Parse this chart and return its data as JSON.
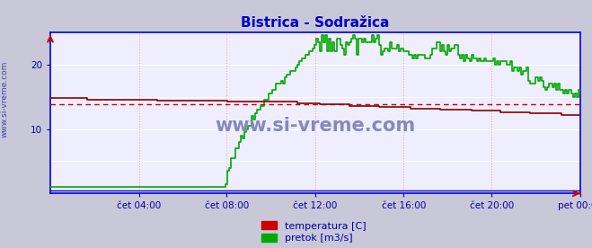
{
  "title": "Bistrica - Sodražica",
  "title_color": "#0000cc",
  "fig_bg_color": "#c8c8d8",
  "plot_bg_color": "#eeeeff",
  "grid_color_h": "#ffffff",
  "grid_color_v": "#ffaaaa",
  "border_color": "#0000dd",
  "tick_color": "#0000aa",
  "watermark": "www.si-vreme.com",
  "watermark_color": "#8888bb",
  "xtick_labels": [
    "čet 04:00",
    "čet 08:00",
    "čet 12:00",
    "čet 16:00",
    "čet 20:00",
    "pet 00:00"
  ],
  "xtick_positions": [
    0.167,
    0.333,
    0.5,
    0.667,
    0.833,
    1.0
  ],
  "ylim": [
    0,
    25
  ],
  "ytick_vals": [
    10,
    20
  ],
  "ytick_labels": [
    "10",
    "20"
  ],
  "legend_labels": [
    "temperatura [C]",
    "pretok [m3/s]"
  ],
  "legend_colors": [
    "#cc0000",
    "#00aa00"
  ],
  "temp_solid_color": "#880000",
  "temp_dash_color": "#cc0000",
  "flow_color": "#00aa00",
  "height_color": "#0000bb",
  "n_points": 288,
  "left_label": "www.si-vreme.com",
  "left_label_color": "#4444aa"
}
